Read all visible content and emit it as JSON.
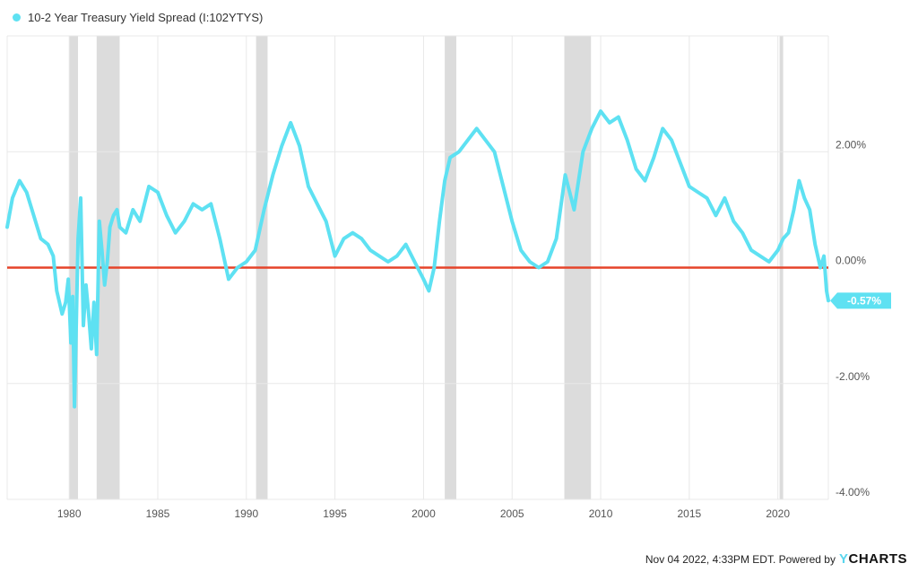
{
  "legend": {
    "label": "10-2 Year Treasury Yield Spread (I:102YTYS)"
  },
  "colors": {
    "series": "#5ee1f2",
    "zero_line": "#e5442a",
    "recession": "#dcdcdc",
    "grid": "#e8e8e8",
    "badge_text": "#ffffff"
  },
  "footer": {
    "text": "Nov 04 2022, 4:33PM EDT. Powered by",
    "brand_y": "Y",
    "brand_rest": "CHARTS"
  },
  "chart_data": {
    "type": "line",
    "ylabel_position": "right",
    "xlim": [
      1976.5,
      2022.85
    ],
    "ylim": [
      -4,
      4
    ],
    "x_ticks": [
      1980,
      1985,
      1990,
      1995,
      2000,
      2005,
      2010,
      2015,
      2020
    ],
    "x_tick_labels": [
      "1980",
      "1985",
      "1990",
      "1995",
      "2000",
      "2005",
      "2010",
      "2015",
      "2020"
    ],
    "y_ticks": [
      2,
      0,
      -2,
      -4
    ],
    "y_tick_labels": [
      "2.00%",
      "0.00%",
      "-2.00%",
      "-4.00%"
    ],
    "reference_line": 0,
    "last_value_label": "-0.57%",
    "last_value": -0.57,
    "recessions": [
      [
        1980.0,
        1980.5
      ],
      [
        1981.55,
        1982.85
      ],
      [
        1990.55,
        1991.2
      ],
      [
        2001.2,
        2001.85
      ],
      [
        2007.95,
        2009.45
      ],
      [
        2020.1,
        2020.3
      ]
    ],
    "series": [
      {
        "name": "10-2 Year Treasury Yield Spread (I:102YTYS)",
        "x": [
          1976.5,
          1976.8,
          1977.2,
          1977.6,
          1978.0,
          1978.4,
          1978.8,
          1979.1,
          1979.3,
          1979.6,
          1979.8,
          1979.95,
          1980.1,
          1980.2,
          1980.3,
          1980.5,
          1980.65,
          1980.8,
          1980.95,
          1981.1,
          1981.25,
          1981.4,
          1981.55,
          1981.7,
          1981.85,
          1982.0,
          1982.15,
          1982.3,
          1982.5,
          1982.7,
          1982.85,
          1983.2,
          1983.6,
          1984.0,
          1984.5,
          1985.0,
          1985.5,
          1986.0,
          1986.5,
          1987.0,
          1987.5,
          1988.0,
          1988.5,
          1989.0,
          1989.5,
          1990.0,
          1990.5,
          1991.0,
          1991.5,
          1992.0,
          1992.5,
          1993.0,
          1993.5,
          1994.0,
          1994.5,
          1995.0,
          1995.5,
          1996.0,
          1996.5,
          1997.0,
          1997.5,
          1998.0,
          1998.5,
          1999.0,
          1999.5,
          2000.0,
          2000.3,
          2000.6,
          2000.9,
          2001.2,
          2001.5,
          2002.0,
          2002.5,
          2003.0,
          2003.5,
          2004.0,
          2004.5,
          2005.0,
          2005.5,
          2006.0,
          2006.5,
          2007.0,
          2007.5,
          2008.0,
          2008.5,
          2009.0,
          2009.5,
          2010.0,
          2010.5,
          2011.0,
          2011.5,
          2012.0,
          2012.5,
          2013.0,
          2013.5,
          2014.0,
          2014.5,
          2015.0,
          2015.5,
          2016.0,
          2016.5,
          2017.0,
          2017.5,
          2018.0,
          2018.5,
          2019.0,
          2019.5,
          2020.0,
          2020.3,
          2020.6,
          2020.9,
          2021.2,
          2021.5,
          2021.8,
          2022.1,
          2022.4,
          2022.6,
          2022.75,
          2022.85
        ],
        "values": [
          0.7,
          1.2,
          1.5,
          1.3,
          0.9,
          0.5,
          0.4,
          0.2,
          -0.4,
          -0.8,
          -0.6,
          -0.2,
          -1.3,
          -0.5,
          -2.4,
          0.5,
          1.2,
          -1.0,
          -0.3,
          -0.8,
          -1.4,
          -0.6,
          -1.5,
          0.8,
          0.3,
          -0.3,
          0.1,
          0.7,
          0.9,
          1.0,
          0.7,
          0.6,
          1.0,
          0.8,
          1.4,
          1.3,
          0.9,
          0.6,
          0.8,
          1.1,
          1.0,
          1.1,
          0.5,
          -0.2,
          0.0,
          0.1,
          0.3,
          1.0,
          1.6,
          2.1,
          2.5,
          2.1,
          1.4,
          1.1,
          0.8,
          0.2,
          0.5,
          0.6,
          0.5,
          0.3,
          0.2,
          0.1,
          0.2,
          0.4,
          0.1,
          -0.2,
          -0.4,
          0.0,
          0.8,
          1.5,
          1.9,
          2.0,
          2.2,
          2.4,
          2.2,
          2.0,
          1.4,
          0.8,
          0.3,
          0.1,
          0.0,
          0.1,
          0.5,
          1.6,
          1.0,
          2.0,
          2.4,
          2.7,
          2.5,
          2.6,
          2.2,
          1.7,
          1.5,
          1.9,
          2.4,
          2.2,
          1.8,
          1.4,
          1.3,
          1.2,
          0.9,
          1.2,
          0.8,
          0.6,
          0.3,
          0.2,
          0.1,
          0.3,
          0.5,
          0.6,
          1.0,
          1.5,
          1.2,
          1.0,
          0.4,
          0.0,
          0.2,
          -0.4,
          -0.57
        ]
      }
    ]
  }
}
